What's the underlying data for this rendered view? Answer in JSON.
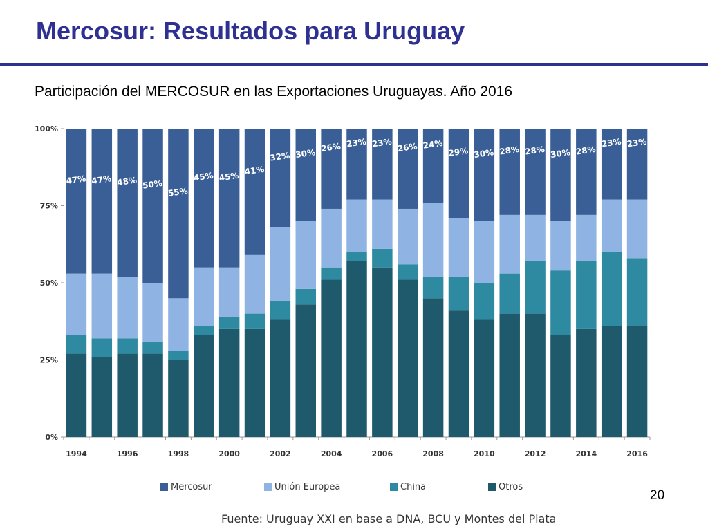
{
  "slide": {
    "title": "Mercosur: Resultados para Uruguay",
    "subtitle": "Participación del MERCOSUR en las Exportaciones Uruguayas. Año 2016",
    "page_number": "20",
    "source": "Fuente: Uruguay XXI en base a DNA, BCU y Montes del Plata"
  },
  "chart_data": {
    "type": "bar",
    "stacked": true,
    "categories": [
      "1994",
      "1995",
      "1996",
      "1997",
      "1998",
      "1999",
      "2000",
      "2001",
      "2002",
      "2003",
      "2004",
      "2005",
      "2006",
      "2007",
      "2008",
      "2009",
      "2010",
      "2011",
      "2012",
      "2013",
      "2014",
      "2015",
      "2016"
    ],
    "tick_labels": [
      "1994",
      "",
      "1996",
      "",
      "1998",
      "",
      "2000",
      "",
      "2002",
      "",
      "2004",
      "",
      "2006",
      "",
      "2008",
      "",
      "2010",
      "",
      "2012",
      "",
      "2014",
      "",
      "2016"
    ],
    "y_ticks": [
      0,
      25,
      50,
      75,
      100
    ],
    "y_tick_labels": [
      "0%",
      "25%",
      "50%",
      "75%",
      "100%"
    ],
    "ylim": [
      0,
      100
    ],
    "grid": false,
    "legend_position": "bottom",
    "series": [
      {
        "name": "Otros",
        "color": "#1f5a6c",
        "values": [
          27,
          26,
          27,
          27,
          25,
          33,
          35,
          35,
          38,
          43,
          51,
          57,
          55,
          51,
          45,
          41,
          38,
          40,
          40,
          33,
          35,
          36,
          36
        ]
      },
      {
        "name": "China",
        "color": "#2e8aa0",
        "values": [
          6,
          6,
          5,
          4,
          3,
          3,
          4,
          5,
          6,
          5,
          4,
          3,
          6,
          5,
          7,
          11,
          12,
          13,
          17,
          21,
          22,
          24,
          22
        ]
      },
      {
        "name": "Unión Europea",
        "color": "#8fb4e3",
        "values": [
          20,
          21,
          20,
          19,
          17,
          19,
          16,
          19,
          24,
          22,
          19,
          17,
          16,
          18,
          24,
          19,
          20,
          19,
          15,
          16,
          15,
          17,
          19
        ]
      },
      {
        "name": "Mercosur",
        "color": "#3a5f96",
        "values": [
          47,
          47,
          48,
          50,
          55,
          45,
          45,
          41,
          32,
          30,
          26,
          23,
          23,
          26,
          24,
          29,
          30,
          28,
          28,
          30,
          28,
          23,
          23
        ]
      }
    ],
    "data_labels": [
      "47%",
      "47%",
      "48%",
      "50%",
      "55%",
      "45%",
      "45%",
      "41%",
      "32%",
      "30%",
      "26%",
      "23%",
      "23%",
      "26%",
      "24%",
      "29%",
      "30%",
      "28%",
      "28%",
      "30%",
      "28%",
      "23%",
      "23%"
    ],
    "legend_order": [
      "Mercosur",
      "Unión Europea",
      "China",
      "Otros"
    ]
  }
}
